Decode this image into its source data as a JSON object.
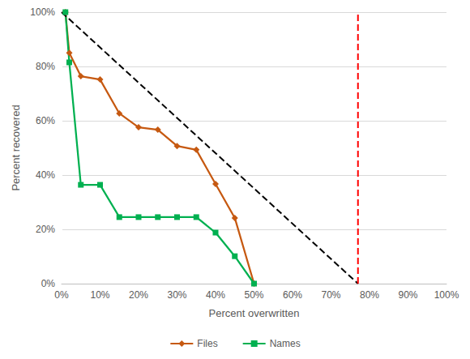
{
  "chart_data": {
    "type": "line",
    "x_label": "Percent overwritten",
    "y_label": "Percent recovered",
    "x": [
      1,
      2,
      5,
      10,
      15,
      20,
      25,
      30,
      35,
      40,
      45,
      50
    ],
    "series": [
      {
        "name": "Files",
        "color": "#c65911",
        "marker": "diamond",
        "line_style": "solid",
        "values": [
          100,
          85,
          76.4,
          75.2,
          62.7,
          57.6,
          56.7,
          50.7,
          49.3,
          36.7,
          24.2,
          0
        ]
      },
      {
        "name": "Names",
        "color": "#00b050",
        "marker": "square",
        "line_style": "solid",
        "values": [
          100,
          81.5,
          36.4,
          36.4,
          24.5,
          24.5,
          24.5,
          24.5,
          24.5,
          18.8,
          10.1,
          0
        ]
      },
      {
        "color": "#000000",
        "line_style": "dashed",
        "x": [
          0,
          77
        ],
        "values": [
          100,
          0
        ]
      },
      {
        "color": "#ff0000",
        "line_style": "dashed",
        "x": [
          77,
          77
        ],
        "values": [
          0,
          100
        ]
      }
    ],
    "xlim": [
      0,
      100
    ],
    "xticks": [
      {
        "value": 0,
        "label": "0%"
      },
      {
        "value": 10,
        "label": "10%"
      },
      {
        "value": 20,
        "label": "20%"
      },
      {
        "value": 30,
        "label": "30%"
      },
      {
        "value": 40,
        "label": "40%"
      },
      {
        "value": 50,
        "label": "50%"
      },
      {
        "value": 60,
        "label": "60%"
      },
      {
        "value": 70,
        "label": "70%"
      },
      {
        "value": 80,
        "label": "80%"
      },
      {
        "value": 90,
        "label": "90%"
      },
      {
        "value": 100,
        "label": "100%"
      }
    ],
    "ylim": [
      0,
      100
    ],
    "yticks": [
      {
        "value": 0,
        "label": "0%"
      },
      {
        "value": 20,
        "label": "20%"
      },
      {
        "value": 40,
        "label": "40%"
      },
      {
        "value": 60,
        "label": "60%"
      },
      {
        "value": 80,
        "label": "80%"
      },
      {
        "value": 100,
        "label": "100%"
      }
    ],
    "grid": true,
    "legend": "bottom"
  }
}
